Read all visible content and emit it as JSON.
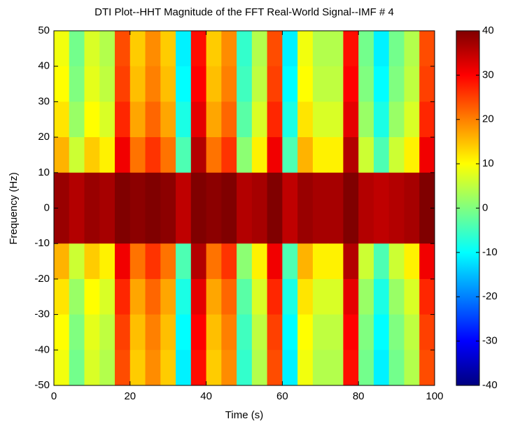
{
  "chart_data": {
    "type": "heatmap",
    "title": "DTI Plot--HHT Magnitude of the FFT Real-World Signal--IMF # 4",
    "xlabel": "Time (s)",
    "ylabel": "Frequency (Hz)",
    "x": [
      2,
      6,
      10,
      14,
      18,
      22,
      26,
      30,
      34,
      38,
      42,
      46,
      50,
      54,
      58,
      62,
      66,
      70,
      74,
      78,
      82,
      86,
      90,
      94,
      98
    ],
    "y": [
      45,
      35,
      25,
      15,
      5,
      -5,
      -15,
      -25,
      -35,
      -45
    ],
    "z": [
      [
        9,
        -1,
        7,
        4,
        24,
        14,
        19,
        14,
        -11,
        29,
        14,
        19,
        -6,
        4,
        24,
        -11,
        9,
        4,
        4,
        29,
        -1,
        -11,
        -1,
        4,
        24
      ],
      [
        10,
        0,
        8,
        5,
        25,
        15,
        20,
        15,
        -10,
        30,
        15,
        20,
        -5,
        5,
        25,
        -10,
        10,
        5,
        5,
        30,
        0,
        -10,
        0,
        5,
        25
      ],
      [
        12,
        2,
        10,
        7,
        27,
        17,
        22,
        17,
        -8,
        32,
        17,
        22,
        -3,
        7,
        27,
        -8,
        12,
        7,
        7,
        32,
        2,
        -8,
        2,
        7,
        27
      ],
      [
        16,
        6,
        14,
        11,
        31,
        21,
        26,
        21,
        -4,
        36,
        21,
        26,
        1,
        11,
        31,
        -4,
        16,
        11,
        11,
        36,
        6,
        -4,
        6,
        11,
        31
      ],
      [
        38,
        36,
        38,
        37,
        40,
        39,
        40,
        39,
        35,
        40,
        39,
        40,
        36,
        37,
        40,
        35,
        38,
        37,
        37,
        40,
        36,
        35,
        36,
        37,
        40
      ],
      [
        38,
        36,
        38,
        37,
        40,
        39,
        40,
        39,
        35,
        40,
        39,
        40,
        36,
        37,
        40,
        35,
        38,
        37,
        37,
        40,
        36,
        35,
        36,
        37,
        40
      ],
      [
        16,
        6,
        14,
        11,
        31,
        21,
        26,
        21,
        -4,
        36,
        21,
        26,
        1,
        11,
        31,
        -4,
        16,
        11,
        11,
        36,
        6,
        -4,
        6,
        11,
        31
      ],
      [
        12,
        2,
        10,
        7,
        27,
        17,
        22,
        17,
        -8,
        32,
        17,
        22,
        -3,
        7,
        27,
        -8,
        12,
        7,
        7,
        32,
        2,
        -8,
        2,
        7,
        27
      ],
      [
        10,
        0,
        8,
        5,
        25,
        15,
        20,
        15,
        -10,
        30,
        15,
        20,
        -5,
        5,
        25,
        -10,
        10,
        5,
        5,
        30,
        0,
        -10,
        0,
        5,
        25
      ],
      [
        9,
        -1,
        7,
        4,
        24,
        14,
        19,
        14,
        -11,
        29,
        14,
        19,
        -6,
        4,
        24,
        -11,
        9,
        4,
        4,
        29,
        -1,
        -11,
        -1,
        4,
        24
      ]
    ],
    "xlim": [
      0,
      100
    ],
    "xticks": [
      0,
      20,
      40,
      60,
      80,
      100
    ],
    "ylim": [
      -50,
      50
    ],
    "yticks": [
      -50,
      -40,
      -30,
      -20,
      -10,
      0,
      10,
      20,
      30,
      40,
      50
    ],
    "colormap": "jet",
    "clim": [
      -40,
      40
    ],
    "cticks": [
      -40,
      -30,
      -20,
      -10,
      0,
      10,
      20,
      30,
      40
    ],
    "grid": false
  }
}
